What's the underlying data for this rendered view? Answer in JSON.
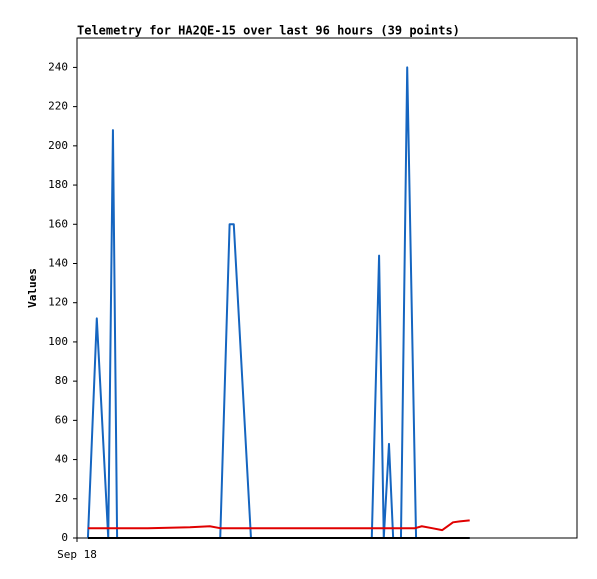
{
  "chart_data": {
    "type": "line",
    "title": "Telemetry for HA2QE-15 over last 96 hours (39 points)",
    "y_label": "Values",
    "xlim": [
      0,
      96
    ],
    "xticks": [
      {
        "value": 0,
        "label": "Sep 18"
      }
    ],
    "ylim": [
      0,
      255
    ],
    "yticks": [
      0,
      20,
      40,
      60,
      80,
      100,
      120,
      140,
      160,
      180,
      200,
      220,
      240
    ],
    "grid": false,
    "series": [
      {
        "color": "#1565c0",
        "x": [
          2.1,
          3.8,
          6.0,
          6.9,
          7.7,
          27.5,
          29.3,
          30.1,
          33.4,
          56.6,
          58.0,
          58.9,
          59.9,
          60.7,
          62.2,
          63.4,
          65.1,
          75.4
        ],
        "values": [
          0,
          112,
          0,
          208,
          0,
          0,
          160,
          160,
          0,
          0,
          144,
          0,
          48,
          0,
          0,
          240,
          0,
          0
        ]
      },
      {
        "color": "#e00000",
        "x": [
          2.1,
          13.6,
          21.7,
          25.5,
          27.5,
          64.9,
          66.2,
          68.2,
          70.1,
          72.2,
          73.5,
          75.4
        ],
        "values": [
          5,
          5,
          5.5,
          6,
          5,
          5,
          6,
          5,
          4,
          8,
          8.5,
          9
        ]
      },
      {
        "color": "#000000",
        "x": [
          2.1,
          75.4
        ],
        "values": [
          0,
          0
        ]
      }
    ]
  }
}
